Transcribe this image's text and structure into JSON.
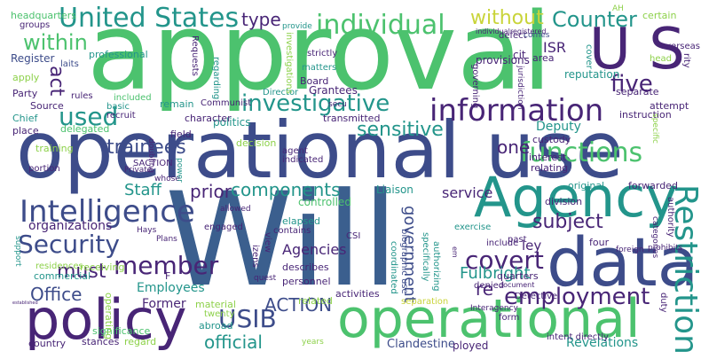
{
  "palette": {
    "green": "#4cc26e",
    "teal": "#23958b",
    "blue": "#3b5f8e",
    "navy": "#3d4c8a",
    "purple": "#482576",
    "yellow": "#c9d43a",
    "lime": "#8dd14a",
    "cyan": "#2ab0a0"
  },
  "words": [
    {
      "id": "approval",
      "text": "approval",
      "color": "green"
    },
    {
      "id": "operational-use",
      "text": "operational use",
      "color": "navy"
    },
    {
      "id": "will",
      "text": "Will",
      "color": "blue"
    },
    {
      "id": "data",
      "text": "data",
      "color": "navy"
    },
    {
      "id": "policy",
      "text": "policy",
      "color": "purple"
    },
    {
      "id": "agency",
      "text": "Agency",
      "color": "teal"
    },
    {
      "id": "operational",
      "text": "operational",
      "color": "green"
    },
    {
      "id": "u-s",
      "text": "U S",
      "color": "purple"
    },
    {
      "id": "united-states",
      "text": "United States",
      "color": "teal"
    },
    {
      "id": "individual",
      "text": "individual",
      "color": "green"
    },
    {
      "id": "information",
      "text": "information",
      "color": "purple"
    },
    {
      "id": "intelligence",
      "text": "Intelligence",
      "color": "navy"
    },
    {
      "id": "investigative",
      "text": "investigative",
      "color": "teal"
    },
    {
      "id": "functions",
      "text": "functions",
      "color": "green"
    },
    {
      "id": "restriction",
      "text": "Restriction",
      "color": "teal"
    },
    {
      "id": "used",
      "text": "used",
      "color": "teal"
    },
    {
      "id": "security",
      "text": "Security",
      "color": "navy"
    },
    {
      "id": "member",
      "text": "member",
      "color": "purple"
    },
    {
      "id": "employment",
      "text": "employment",
      "color": "purple"
    },
    {
      "id": "covert",
      "text": "covert",
      "color": "purple"
    },
    {
      "id": "usib",
      "text": "USIB",
      "color": "navy"
    },
    {
      "id": "without",
      "text": "without",
      "color": "yellow"
    },
    {
      "id": "counter",
      "text": "Counter",
      "color": "teal"
    },
    {
      "id": "within",
      "text": "within",
      "color": "green"
    },
    {
      "id": "five",
      "text": "five",
      "color": "purple"
    },
    {
      "id": "sensitive",
      "text": "sensitive",
      "color": "teal"
    },
    {
      "id": "trainees",
      "text": "trainees",
      "color": "navy"
    },
    {
      "id": "subject",
      "text": "subject",
      "color": "purple"
    },
    {
      "id": "components",
      "text": "components",
      "color": "teal"
    },
    {
      "id": "prior",
      "text": "prior",
      "color": "purple"
    },
    {
      "id": "staff",
      "text": "Staff",
      "color": "teal"
    },
    {
      "id": "must",
      "text": "must",
      "color": "purple"
    },
    {
      "id": "office",
      "text": "Office",
      "color": "navy"
    },
    {
      "id": "official",
      "text": "official",
      "color": "teal"
    },
    {
      "id": "action-caps",
      "text": "ACTION",
      "color": "navy"
    },
    {
      "id": "type",
      "text": "type",
      "color": "purple"
    },
    {
      "id": "act",
      "text": "act",
      "color": "purple"
    },
    {
      "id": "re",
      "text": "re",
      "color": "purple"
    },
    {
      "id": "one",
      "text": "one",
      "color": "purple"
    },
    {
      "id": "government",
      "text": "government",
      "color": "navy"
    },
    {
      "id": "fulbright",
      "text": "Fulbright",
      "color": "teal"
    },
    {
      "id": "agencies",
      "text": "Agencies",
      "color": "purple"
    },
    {
      "id": "employees",
      "text": "Employees",
      "color": "teal"
    },
    {
      "id": "organizations",
      "text": "organizations",
      "color": "purple"
    },
    {
      "id": "service",
      "text": "service",
      "color": "purple"
    },
    {
      "id": "deputy",
      "text": "Deputy",
      "color": "teal"
    },
    {
      "id": "isr",
      "text": "ISR",
      "color": "purple"
    },
    {
      "id": "ley",
      "text": "ley",
      "color": "purple"
    },
    {
      "id": "former",
      "text": "Former",
      "color": "purple"
    },
    {
      "id": "clandestine",
      "text": "Clandestine",
      "color": "navy"
    },
    {
      "id": "revelations",
      "text": "Revelations",
      "color": "teal"
    },
    {
      "id": "headquarters",
      "text": "headquarters",
      "color": "green"
    },
    {
      "id": "groups",
      "text": "groups",
      "color": "purple"
    },
    {
      "id": "register",
      "text": "Register",
      "color": "navy"
    },
    {
      "id": "professional",
      "text": "professional",
      "color": "teal"
    },
    {
      "id": "laits",
      "text": "laits",
      "color": "navy"
    },
    {
      "id": "apply",
      "text": "apply",
      "color": "lime"
    },
    {
      "id": "party",
      "text": "Party",
      "color": "purple"
    },
    {
      "id": "rules",
      "text": "rules",
      "color": "purple"
    },
    {
      "id": "source",
      "text": "Source",
      "color": "purple"
    },
    {
      "id": "delegated",
      "text": "delegated",
      "color": "green"
    },
    {
      "id": "chief",
      "text": "Chief",
      "color": "teal"
    },
    {
      "id": "place",
      "text": "place",
      "color": "purple"
    },
    {
      "id": "basic",
      "text": "basic",
      "color": "teal"
    },
    {
      "id": "recruit",
      "text": "recruit",
      "color": "purple"
    },
    {
      "id": "included",
      "text": "included",
      "color": "green"
    },
    {
      "id": "remain",
      "text": "remain",
      "color": "teal"
    },
    {
      "id": "politics",
      "text": "politics",
      "color": "teal"
    },
    {
      "id": "character",
      "text": "character",
      "color": "purple"
    },
    {
      "id": "field",
      "text": "field",
      "color": "purple"
    },
    {
      "id": "communist",
      "text": "Communist",
      "color": "purple"
    },
    {
      "id": "director",
      "text": "Director",
      "color": "teal"
    },
    {
      "id": "board",
      "text": "Board",
      "color": "purple"
    },
    {
      "id": "matters",
      "text": "matters",
      "color": "teal"
    },
    {
      "id": "strictly",
      "text": "strictly",
      "color": "purple"
    },
    {
      "id": "grantees",
      "text": "Grantees",
      "color": "purple"
    },
    {
      "id": "decision",
      "text": "decision",
      "color": "lime"
    },
    {
      "id": "transmitted",
      "text": "transmitted",
      "color": "purple"
    },
    {
      "id": "secu",
      "text": "secu",
      "color": "purple"
    },
    {
      "id": "certain",
      "text": "certain",
      "color": "lime"
    },
    {
      "id": "overseas",
      "text": "overseas",
      "color": "purple"
    },
    {
      "id": "head",
      "text": "head",
      "color": "lime"
    },
    {
      "id": "defect",
      "text": "defect",
      "color": "purple"
    },
    {
      "id": "comes",
      "text": "comes",
      "color": "navy"
    },
    {
      "id": "provide",
      "text": "provide",
      "color": "teal"
    },
    {
      "id": "provisions",
      "text": "provisions",
      "color": "purple"
    },
    {
      "id": "cit",
      "text": "cit",
      "color": "purple"
    },
    {
      "id": "area",
      "text": "area",
      "color": "purple"
    },
    {
      "id": "cover",
      "text": "cover",
      "color": "teal"
    },
    {
      "id": "separate",
      "text": "separate",
      "color": "purple"
    },
    {
      "id": "instruction",
      "text": "instruction",
      "color": "purple"
    },
    {
      "id": "attempt",
      "text": "attempt",
      "color": "purple"
    },
    {
      "id": "custody",
      "text": "custody",
      "color": "purple"
    },
    {
      "id": "interest",
      "text": "interest",
      "color": "purple"
    },
    {
      "id": "relating",
      "text": "relating",
      "color": "purple"
    },
    {
      "id": "original",
      "text": "original",
      "color": "teal"
    },
    {
      "id": "forwarded",
      "text": "forwarded",
      "color": "purple"
    },
    {
      "id": "division",
      "text": "division",
      "color": "purple"
    },
    {
      "id": "liaison",
      "text": "Liaison",
      "color": "teal"
    },
    {
      "id": "controlled",
      "text": "controlled",
      "color": "green"
    },
    {
      "id": "elapsed",
      "text": "elapsed",
      "color": "teal"
    },
    {
      "id": "biographic-use",
      "text": "biographic use",
      "color": "navy"
    },
    {
      "id": "coordinated",
      "text": "coordinated",
      "color": "teal"
    },
    {
      "id": "specifically",
      "text": "specifically",
      "color": "teal"
    },
    {
      "id": "authorizing",
      "text": "authorizing",
      "color": "teal"
    },
    {
      "id": "exercise",
      "text": "exercise",
      "color": "teal"
    },
    {
      "id": "include",
      "text": "include",
      "color": "purple"
    },
    {
      "id": "past",
      "text": "past",
      "color": "purple"
    },
    {
      "id": "four",
      "text": "four",
      "color": "purple"
    },
    {
      "id": "authority",
      "text": "authority",
      "color": "purple"
    },
    {
      "id": "foreign",
      "text": "foreign",
      "color": "purple"
    },
    {
      "id": "prohibits",
      "text": "prohibits",
      "color": "purple"
    },
    {
      "id": "quarters",
      "text": "quarters",
      "color": "purple"
    },
    {
      "id": "denied",
      "text": "denied",
      "color": "purple"
    },
    {
      "id": "document",
      "text": "document",
      "color": "purple"
    },
    {
      "id": "detective",
      "text": "Detective",
      "color": "purple"
    },
    {
      "id": "form",
      "text": "form",
      "color": "purple"
    },
    {
      "id": "duty",
      "text": "duty",
      "color": "purple"
    },
    {
      "id": "ployed",
      "text": "ployed",
      "color": "purple"
    },
    {
      "id": "intent-directly",
      "text": "intent directly",
      "color": "purple"
    },
    {
      "id": "years",
      "text": "years",
      "color": "lime"
    },
    {
      "id": "separation",
      "text": "separation",
      "color": "yellow"
    },
    {
      "id": "related",
      "text": "related",
      "color": "lime"
    },
    {
      "id": "activities",
      "text": "activities",
      "color": "purple"
    },
    {
      "id": "personnel",
      "text": "personnel",
      "color": "purple"
    },
    {
      "id": "describes",
      "text": "describes",
      "color": "purple"
    },
    {
      "id": "material",
      "text": "material",
      "color": "lime"
    },
    {
      "id": "abroad",
      "text": "abroad",
      "color": "teal"
    },
    {
      "id": "twenty",
      "text": "twenty",
      "color": "lime"
    },
    {
      "id": "f",
      "text": "F",
      "color": "purple"
    },
    {
      "id": "plans",
      "text": "Plans",
      "color": "purple"
    },
    {
      "id": "hays",
      "text": "Hays",
      "color": "purple"
    },
    {
      "id": "receiving",
      "text": "receiving",
      "color": "lime"
    },
    {
      "id": "residences",
      "text": "residences",
      "color": "lime"
    },
    {
      "id": "commercial",
      "text": "commercial",
      "color": "teal"
    },
    {
      "id": "significance",
      "text": "significance",
      "color": "green"
    },
    {
      "id": "stances",
      "text": "stances",
      "color": "purple"
    },
    {
      "id": "regard",
      "text": "regard",
      "color": "lime"
    },
    {
      "id": "country",
      "text": "country",
      "color": "purple"
    },
    {
      "id": "operating",
      "text": "operating",
      "color": "lime"
    },
    {
      "id": "training",
      "text": "training",
      "color": "lime"
    },
    {
      "id": "portion",
      "text": "portion",
      "color": "purple"
    },
    {
      "id": "private",
      "text": "Private",
      "color": "purple"
    },
    {
      "id": "saction",
      "text": "SACTION",
      "color": "purple"
    },
    {
      "id": "whose",
      "text": "whose",
      "color": "purple"
    },
    {
      "id": "allowed",
      "text": "allowed",
      "color": "purple"
    },
    {
      "id": "engaged",
      "text": "engaged",
      "color": "purple"
    },
    {
      "id": "contains",
      "text": "contains",
      "color": "purple"
    },
    {
      "id": "csi",
      "text": "CSI",
      "color": "purple"
    },
    {
      "id": "indicated",
      "text": "indicated",
      "color": "purple"
    },
    {
      "id": "agent",
      "text": "agent",
      "color": "purple"
    },
    {
      "id": "view",
      "text": "view",
      "color": "purple"
    },
    {
      "id": "izens",
      "text": "izens",
      "color": "purple"
    },
    {
      "id": "quest",
      "text": "quest",
      "color": "purple"
    },
    {
      "id": "support",
      "text": "support",
      "color": "teal"
    },
    {
      "id": "reputation",
      "text": "reputation",
      "color": "teal"
    },
    {
      "id": "rity",
      "text": "rity",
      "color": "purple"
    },
    {
      "id": "jurisdiction",
      "text": "jurisdiction",
      "color": "purple"
    },
    {
      "id": "investigations",
      "text": "investigations",
      "color": "lime"
    },
    {
      "id": "requests",
      "text": "Requests",
      "color": "purple"
    },
    {
      "id": "regarding",
      "text": "regarding",
      "color": "teal"
    },
    {
      "id": "governing",
      "text": "governing",
      "color": "purple"
    },
    {
      "id": "doubling",
      "text": "doubling",
      "color": "purple"
    },
    {
      "id": "power",
      "text": "power",
      "color": "teal"
    },
    {
      "id": "specific",
      "text": "specific",
      "color": "lime"
    },
    {
      "id": "categories",
      "text": "categories",
      "color": "purple"
    },
    {
      "id": "em",
      "text": "em",
      "color": "purple"
    },
    {
      "id": "interagency",
      "text": "Interagency",
      "color": "purple"
    },
    {
      "id": "established",
      "text": "established",
      "color": "purple"
    },
    {
      "id": "individualregistered",
      "text": "individualregistered",
      "color": "purple"
    },
    {
      "id": "small-1",
      "text": "AH",
      "color": "lime"
    },
    {
      "id": "small-2",
      "text": "CIA",
      "color": "purple"
    }
  ]
}
